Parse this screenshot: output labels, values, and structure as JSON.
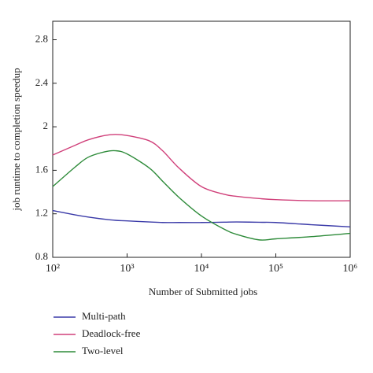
{
  "chart_data": {
    "type": "line",
    "x_label": "Number of Submitted jobs",
    "y_label": "job runtime to completion speedup",
    "xscale": "log",
    "x": [
      100,
      200,
      300,
      500,
      700,
      1000,
      2000,
      3000,
      5000,
      10000,
      20000,
      30000,
      60000,
      100000,
      300000,
      1000000
    ],
    "series": [
      {
        "name": "Multi-path",
        "color": "#3a3aa8",
        "values": [
          1.23,
          1.19,
          1.17,
          1.15,
          1.14,
          1.135,
          1.125,
          1.12,
          1.12,
          1.12,
          1.123,
          1.125,
          1.122,
          1.12,
          1.1,
          1.08
        ]
      },
      {
        "name": "Deadlock-free",
        "color": "#d0407a",
        "values": [
          1.74,
          1.83,
          1.88,
          1.92,
          1.93,
          1.92,
          1.87,
          1.78,
          1.62,
          1.45,
          1.38,
          1.36,
          1.34,
          1.33,
          1.32,
          1.32
        ]
      },
      {
        "name": "Two-level",
        "color": "#2e8b3a",
        "values": [
          1.45,
          1.63,
          1.72,
          1.77,
          1.78,
          1.75,
          1.62,
          1.5,
          1.35,
          1.18,
          1.06,
          1.01,
          0.96,
          0.97,
          0.99,
          1.02
        ]
      }
    ],
    "xlim": [
      100,
      1000000
    ],
    "xticks": [
      {
        "value": 100,
        "label": "10²"
      },
      {
        "value": 1000,
        "label": "10³"
      },
      {
        "value": 10000,
        "label": "10⁴"
      },
      {
        "value": 100000,
        "label": "10⁵"
      },
      {
        "value": 1000000,
        "label": "10⁶"
      }
    ],
    "ylim": [
      0.8,
      2.97
    ],
    "yticks": [
      0.8,
      1.2,
      1.6,
      2.0,
      2.4,
      2.8
    ],
    "grid": false
  }
}
